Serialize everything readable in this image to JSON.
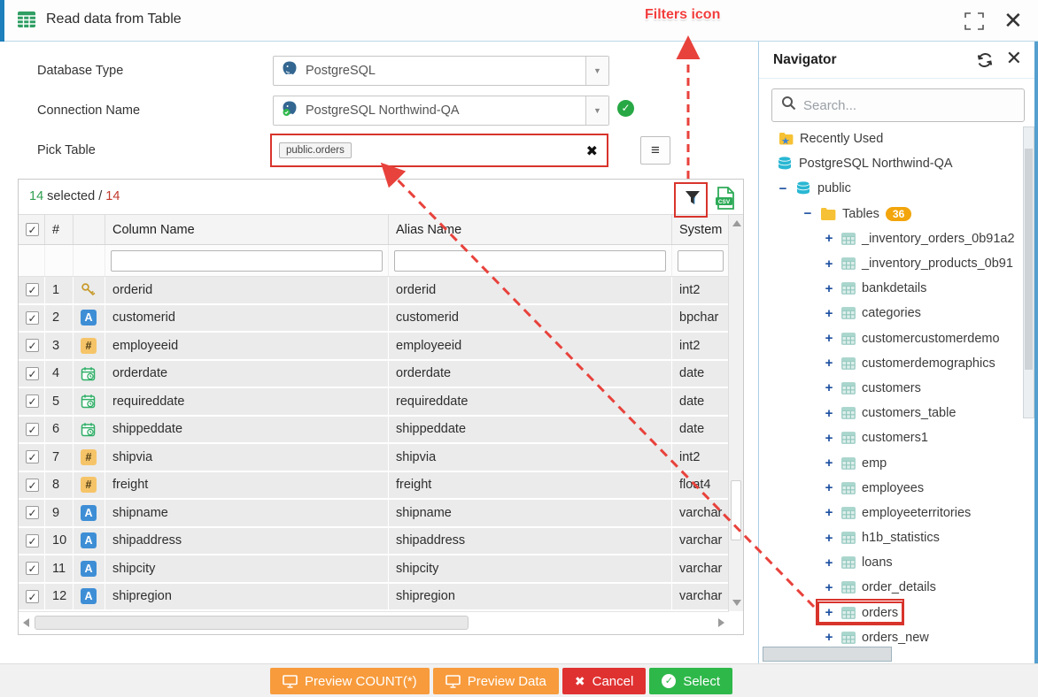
{
  "dialog": {
    "title": "Read data from Table"
  },
  "annotations": {
    "filters_label": "Filters icon"
  },
  "icons": {
    "check": "✓",
    "clear": "✖",
    "menu": "≡",
    "dropdown": "▼",
    "close": "✕",
    "nav_close": "✕"
  },
  "form": {
    "database_type": {
      "label": "Database Type",
      "value": "PostgreSQL"
    },
    "connection_name": {
      "label": "Connection Name",
      "value": "PostgreSQL Northwind-QA"
    },
    "pick_table": {
      "label": "Pick Table",
      "tag": "public.orders"
    }
  },
  "grid": {
    "summary": {
      "selected": "14",
      "mid": "selected /",
      "total": "14"
    },
    "header": {
      "num": "#",
      "column_name": "Column Name",
      "alias_name": "Alias Name",
      "system": "System"
    },
    "rows": [
      {
        "num": "1",
        "type_icon": "key-icon",
        "column": "orderid",
        "alias": "orderid",
        "system": "int2"
      },
      {
        "num": "2",
        "type_icon": "text-icon",
        "column": "customerid",
        "alias": "customerid",
        "system": "bpchar"
      },
      {
        "num": "3",
        "type_icon": "number-icon",
        "column": "employeeid",
        "alias": "employeeid",
        "system": "int2"
      },
      {
        "num": "4",
        "type_icon": "calendar-icon",
        "column": "orderdate",
        "alias": "orderdate",
        "system": "date"
      },
      {
        "num": "5",
        "type_icon": "calendar-icon",
        "column": "requireddate",
        "alias": "requireddate",
        "system": "date"
      },
      {
        "num": "6",
        "type_icon": "calendar-icon",
        "column": "shippeddate",
        "alias": "shippeddate",
        "system": "date"
      },
      {
        "num": "7",
        "type_icon": "number-icon",
        "column": "shipvia",
        "alias": "shipvia",
        "system": "int2"
      },
      {
        "num": "8",
        "type_icon": "number-icon",
        "column": "freight",
        "alias": "freight",
        "system": "float4"
      },
      {
        "num": "9",
        "type_icon": "text-icon",
        "column": "shipname",
        "alias": "shipname",
        "system": "varchar"
      },
      {
        "num": "10",
        "type_icon": "text-icon",
        "column": "shipaddress",
        "alias": "shipaddress",
        "system": "varchar"
      },
      {
        "num": "11",
        "type_icon": "text-icon",
        "column": "shipcity",
        "alias": "shipcity",
        "system": "varchar"
      },
      {
        "num": "12",
        "type_icon": "text-icon",
        "column": "shipregion",
        "alias": "shipregion",
        "system": "varchar"
      }
    ]
  },
  "navigator": {
    "title": "Navigator",
    "search_placeholder": "Search...",
    "tree": [
      {
        "label": "Recently Used",
        "icon": "folder-star-icon",
        "level": 0,
        "expander": ""
      },
      {
        "label": "PostgreSQL Northwind-QA",
        "icon": "database-icon",
        "level": 0,
        "expander": ""
      },
      {
        "label": "public",
        "icon": "database-icon",
        "level": 1,
        "expander": "−"
      },
      {
        "label": "Tables",
        "icon": "folder-icon",
        "level": 2,
        "expander": "−",
        "badge": "36"
      },
      {
        "label": "_inventory_orders_0b91a2",
        "icon": "table-icon",
        "level": 3,
        "expander": "+"
      },
      {
        "label": "_inventory_products_0b91",
        "icon": "table-icon",
        "level": 3,
        "expander": "+"
      },
      {
        "label": "bankdetails",
        "icon": "table-icon",
        "level": 3,
        "expander": "+"
      },
      {
        "label": "categories",
        "icon": "table-icon",
        "level": 3,
        "expander": "+"
      },
      {
        "label": "customercustomerdemo",
        "icon": "table-icon",
        "level": 3,
        "expander": "+"
      },
      {
        "label": "customerdemographics",
        "icon": "table-icon",
        "level": 3,
        "expander": "+"
      },
      {
        "label": "customers",
        "icon": "table-icon",
        "level": 3,
        "expander": "+"
      },
      {
        "label": "customers_table",
        "icon": "table-icon",
        "level": 3,
        "expander": "+"
      },
      {
        "label": "customers1",
        "icon": "table-icon",
        "level": 3,
        "expander": "+"
      },
      {
        "label": "emp",
        "icon": "table-icon",
        "level": 3,
        "expander": "+"
      },
      {
        "label": "employees",
        "icon": "table-icon",
        "level": 3,
        "expander": "+"
      },
      {
        "label": "employeeterritories",
        "icon": "table-icon",
        "level": 3,
        "expander": "+"
      },
      {
        "label": "h1b_statistics",
        "icon": "table-icon",
        "level": 3,
        "expander": "+"
      },
      {
        "label": "loans",
        "icon": "table-icon",
        "level": 3,
        "expander": "+"
      },
      {
        "label": "order_details",
        "icon": "table-icon",
        "level": 3,
        "expander": "+"
      },
      {
        "label": "orders",
        "icon": "table-icon",
        "level": 3,
        "expander": "+",
        "highlight": true
      },
      {
        "label": "orders_new",
        "icon": "table-icon",
        "level": 3,
        "expander": "+"
      }
    ]
  },
  "footer": {
    "buttons": [
      {
        "label": "Preview COUNT(*)"
      },
      {
        "label": "Preview Data"
      },
      {
        "label": "Cancel"
      },
      {
        "label": "Select"
      }
    ]
  }
}
